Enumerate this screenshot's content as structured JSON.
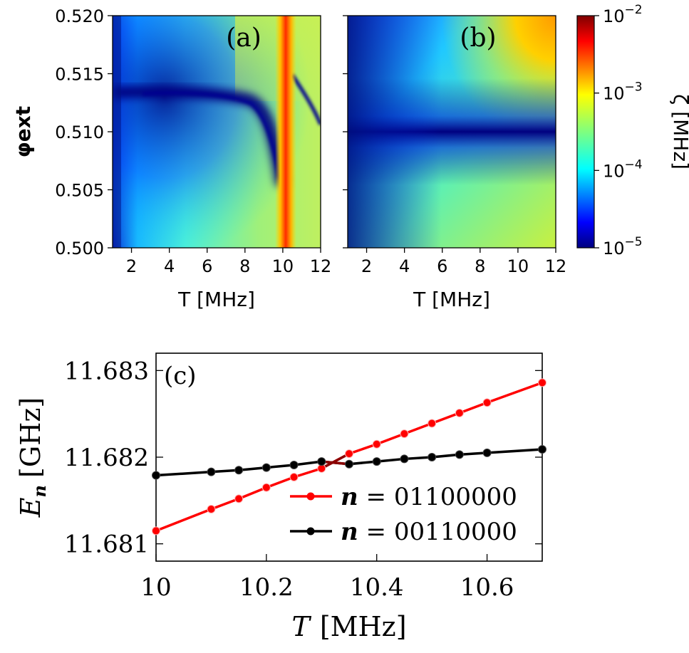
{
  "chart_data": [
    {
      "type": "heatmap",
      "panel_label": "(a)",
      "xlabel": "T [MHz]",
      "ylabel": "φext",
      "xlim": [
        1,
        12
      ],
      "ylim": [
        0.5,
        0.52
      ],
      "xticks": [
        2,
        4,
        6,
        8,
        10,
        12
      ],
      "yticks": [
        "0.500",
        "0.505",
        "0.510",
        "0.515",
        "0.520"
      ],
      "colormap": "jet",
      "log_color_scale": true,
      "features": {
        "resonance_band_T": 10.3,
        "minimum_valley_phi": 0.513
      }
    },
    {
      "type": "heatmap",
      "panel_label": "(b)",
      "xlabel": "T [MHz]",
      "xlim": [
        1,
        12
      ],
      "ylim": [
        0.5,
        0.52
      ],
      "xticks": [
        2,
        4,
        6,
        8,
        10,
        12
      ],
      "colormap": "jet",
      "log_color_scale": true,
      "features": {
        "minimum_valley_phi": 0.51
      }
    },
    {
      "type": "colorbar",
      "label": "ζ [MHz]",
      "range": [
        "1e-5",
        "1e-2"
      ],
      "tick_bases": [
        "10",
        "10",
        "10",
        "10"
      ],
      "tick_exponents": [
        "−5",
        "−4",
        "−3",
        "−2"
      ]
    },
    {
      "type": "line",
      "panel_label": "(c)",
      "xlabel_italic": "T",
      "xlabel_unit": "[MHz]",
      "ylabel_italic": "E",
      "ylabel_sub": "n",
      "ylabel_unit": "[GHz]",
      "xlim": [
        10,
        10.7
      ],
      "ylim": [
        11.6808,
        11.6832
      ],
      "xticks": [
        "10",
        "10.2",
        "10.4",
        "10.6"
      ],
      "yticks": [
        "11.681",
        "11.682",
        "11.683"
      ],
      "series": [
        {
          "name": "01100000",
          "legend_symbol": "n",
          "color": "#ff0000",
          "x": [
            10.0,
            10.1,
            10.15,
            10.2,
            10.25,
            10.3,
            10.35,
            10.4,
            10.45,
            10.5,
            10.55,
            10.6,
            10.7
          ],
          "y": [
            11.68115,
            11.6814,
            11.68152,
            11.68165,
            11.68177,
            11.68187,
            11.68204,
            11.68215,
            11.68227,
            11.68239,
            11.68251,
            11.68263,
            11.68286
          ]
        },
        {
          "name": "00110000",
          "legend_symbol": "n",
          "color": "#000000",
          "x": [
            10.0,
            10.1,
            10.15,
            10.2,
            10.25,
            10.3,
            10.35,
            10.4,
            10.45,
            10.5,
            10.55,
            10.6,
            10.7
          ],
          "y": [
            11.68179,
            11.68183,
            11.68185,
            11.68188,
            11.68191,
            11.68195,
            11.68192,
            11.68195,
            11.68198,
            11.682,
            11.68203,
            11.68205,
            11.68209
          ]
        }
      ],
      "legend_position": "lower-right",
      "avoided_crossing_color": "#8b0000"
    }
  ]
}
